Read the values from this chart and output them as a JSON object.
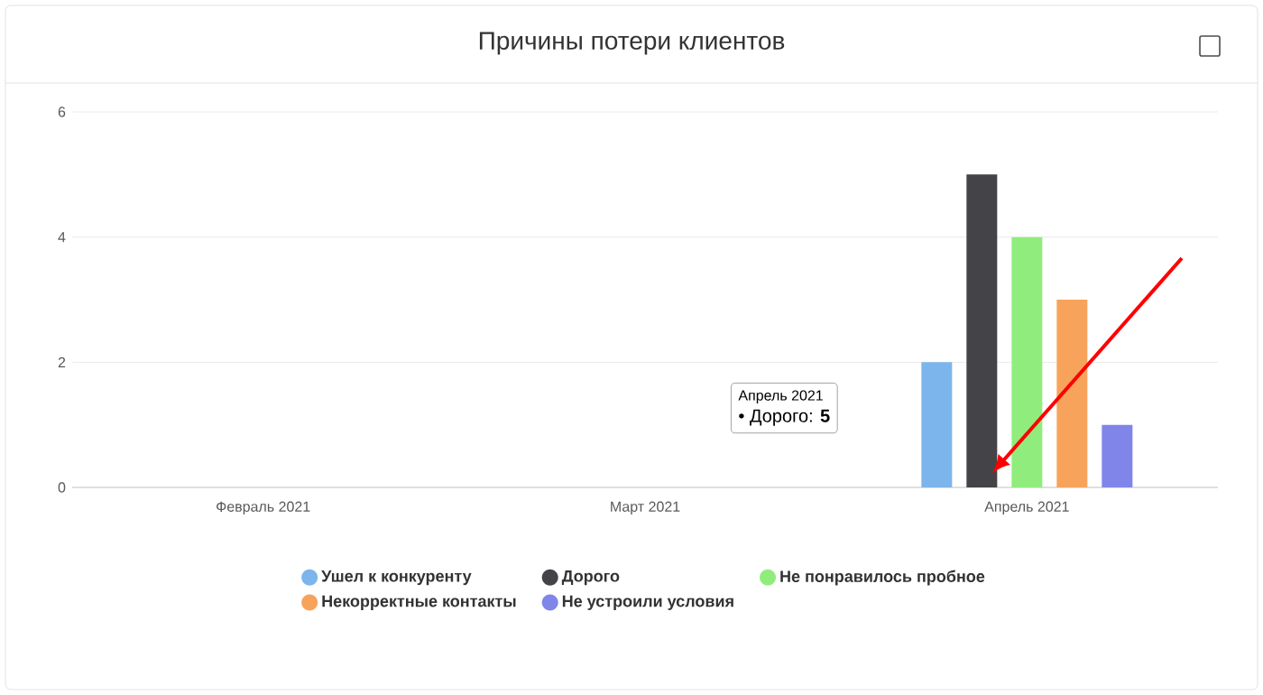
{
  "chart_data": {
    "type": "bar",
    "title": "Причины потери клиентов",
    "categories": [
      "Февраль 2021",
      "Март 2021",
      "Апрель 2021"
    ],
    "series": [
      {
        "name": "Ушел к конкуренту",
        "color": "#7cb5ec",
        "values": [
          0,
          0,
          2
        ]
      },
      {
        "name": "Дорого",
        "color": "#434348",
        "values": [
          0,
          0,
          5
        ]
      },
      {
        "name": "Не понравилось пробное",
        "color": "#90ed7d",
        "values": [
          0,
          0,
          4
        ]
      },
      {
        "name": "Некорректные контакты",
        "color": "#f7a35c",
        "values": [
          0,
          0,
          3
        ]
      },
      {
        "name": "Не устроили условия",
        "color": "#8085e9",
        "values": [
          0,
          0,
          1
        ]
      }
    ],
    "ylim": [
      0,
      6
    ],
    "yticks": [
      0,
      2,
      4,
      6
    ],
    "grid": "y",
    "legend": "bottom",
    "annotations": [
      "Апрель 2021",
      "• Дорого: **5**"
    ]
  }
}
